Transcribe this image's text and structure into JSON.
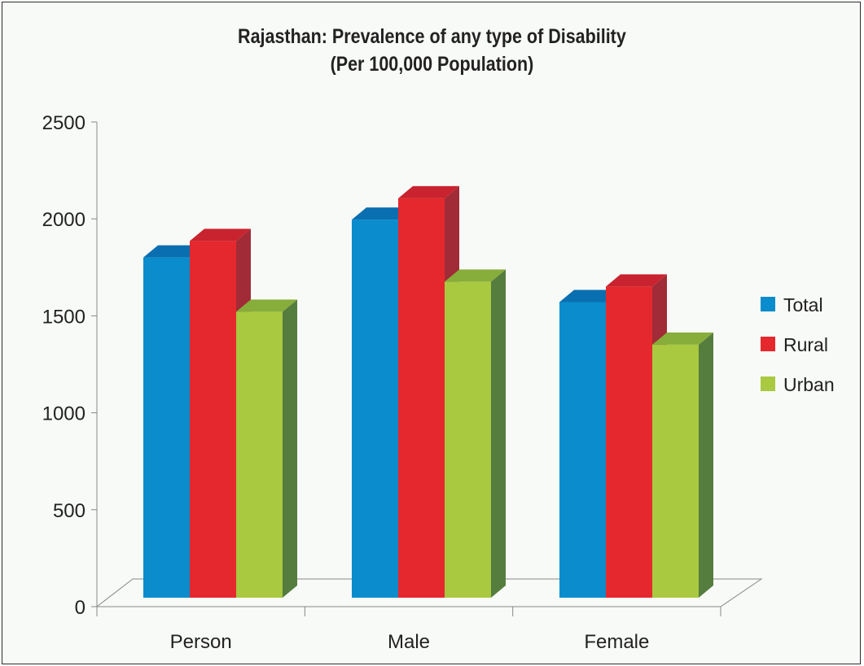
{
  "chart_data": {
    "type": "bar",
    "title": "Rajasthan: Prevalence of any type of Disability",
    "subtitle": "(Per 100,000 Population)",
    "categories": [
      "Person",
      "Male",
      "Female"
    ],
    "series": [
      {
        "name": "Total",
        "values": [
          1755,
          1950,
          1525
        ],
        "color": "#0a8ccd",
        "top_color": "#0a6fb0",
        "side_color": "#0a5d93"
      },
      {
        "name": "Rural",
        "values": [
          1840,
          2060,
          1605
        ],
        "color": "#e5282d",
        "top_color": "#c8232e",
        "side_color": "#a12b36"
      },
      {
        "name": "Urban",
        "values": [
          1475,
          1630,
          1305
        ],
        "color": "#a8c940",
        "top_color": "#87ad3b",
        "side_color": "#557d3e"
      }
    ],
    "y_ticks": [
      "0",
      "500",
      "1000",
      "1500",
      "2000",
      "2500"
    ],
    "ylim": [
      0,
      2500
    ],
    "grid": false,
    "legend_position": "right",
    "style": "3d"
  }
}
